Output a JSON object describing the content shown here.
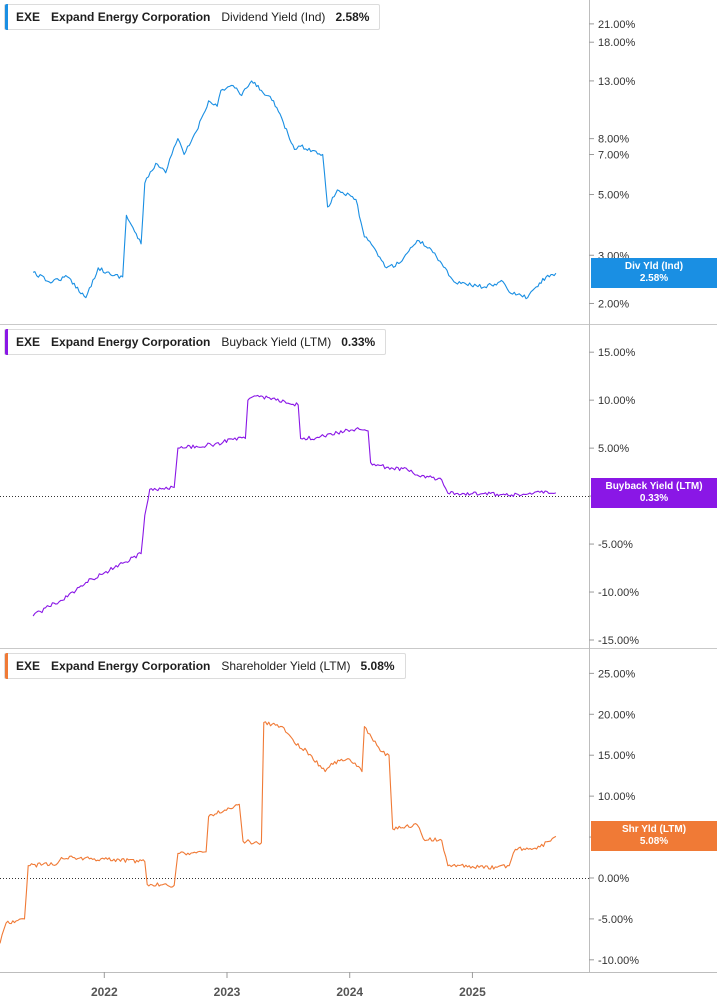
{
  "chart_data": [
    {
      "type": "line",
      "ticker": "EXE",
      "company": "Expand Energy Corporation",
      "metric": "Dividend Yield (Ind)",
      "current_value": "2.58%",
      "tag_label": "Div Yld (Ind)",
      "tag_value": "2.58%",
      "color": "#1a8fe3",
      "scale": "log",
      "ylim": [
        1.8,
        24
      ],
      "yticks": [
        21,
        18,
        13,
        8,
        7,
        5,
        3,
        2
      ],
      "ytick_labels": [
        "21.00%",
        "18.00%",
        "13.00%",
        "8.00%",
        "7.00%",
        "5.00%",
        "3.00%",
        "2.00%"
      ],
      "zero_line": false,
      "x": [
        2021.42,
        2021.55,
        2021.7,
        2021.85,
        2021.95,
        2022.05,
        2022.15,
        2022.18,
        2022.3,
        2022.33,
        2022.42,
        2022.5,
        2022.55,
        2022.6,
        2022.65,
        2022.75,
        2022.85,
        2022.92,
        2022.95,
        2023.05,
        2023.12,
        2023.2,
        2023.28,
        2023.38,
        2023.55,
        2023.6,
        2023.78,
        2023.82,
        2023.9,
        2024.05,
        2024.12,
        2024.15,
        2024.3,
        2024.4,
        2024.55,
        2024.65,
        2024.75,
        2024.85,
        2024.95,
        2025.1,
        2025.25,
        2025.3,
        2025.45,
        2025.52,
        2025.6,
        2025.68
      ],
      "values": [
        2.6,
        2.4,
        2.5,
        2.1,
        2.7,
        2.55,
        2.5,
        4.2,
        3.3,
        5.5,
        6.5,
        6.0,
        7.0,
        8.0,
        7.0,
        8.5,
        11.0,
        10.5,
        12.0,
        12.5,
        11.5,
        13.0,
        12.0,
        11.0,
        7.3,
        7.5,
        7.0,
        4.5,
        5.2,
        4.8,
        3.5,
        3.4,
        2.7,
        2.8,
        3.4,
        3.2,
        2.8,
        2.4,
        2.35,
        2.3,
        2.4,
        2.2,
        2.1,
        2.3,
        2.5,
        2.58
      ]
    },
    {
      "type": "line",
      "ticker": "EXE",
      "company": "Expand Energy Corporation",
      "metric": "Buyback Yield (LTM)",
      "current_value": "0.33%",
      "tag_label": "Buyback Yield (LTM)",
      "tag_value": "0.33%",
      "color": "#8a17e6",
      "scale": "linear",
      "ylim": [
        -15,
        17
      ],
      "yticks": [
        15,
        10,
        5,
        0,
        -5,
        -10,
        -15
      ],
      "ytick_labels": [
        "15.00%",
        "10.00%",
        "5.00%",
        "",
        "-5.00%",
        "-10.00%",
        "-15.00%"
      ],
      "zero_line": true,
      "x": [
        2021.42,
        2021.55,
        2021.7,
        2021.85,
        2022.0,
        2022.15,
        2022.3,
        2022.33,
        2022.37,
        2022.57,
        2022.6,
        2022.75,
        2022.9,
        2023.05,
        2023.15,
        2023.17,
        2023.25,
        2023.4,
        2023.58,
        2023.6,
        2023.75,
        2023.9,
        2024.05,
        2024.15,
        2024.17,
        2024.3,
        2024.5,
        2024.55,
        2024.75,
        2024.8,
        2025.0,
        2025.2,
        2025.4,
        2025.55,
        2025.68
      ],
      "values": [
        -12.5,
        -11.5,
        -10.5,
        -9.0,
        -8.0,
        -7.0,
        -6.0,
        -2.0,
        0.7,
        0.9,
        5.0,
        5.2,
        5.4,
        5.9,
        6.0,
        10.0,
        10.5,
        10.0,
        9.5,
        6.0,
        6.1,
        6.6,
        7.0,
        6.8,
        3.5,
        3.0,
        2.7,
        2.2,
        1.7,
        0.3,
        0.25,
        0.2,
        0.1,
        0.4,
        0.33
      ]
    },
    {
      "type": "line",
      "ticker": "EXE",
      "company": "Expand Energy Corporation",
      "metric": "Shareholder Yield (LTM)",
      "current_value": "5.08%",
      "tag_label": "Shr Yld (LTM)",
      "tag_value": "5.08%",
      "color": "#f07a36",
      "scale": "linear",
      "ylim": [
        -11,
        27
      ],
      "yticks": [
        25,
        20,
        15,
        10,
        5,
        0,
        -5,
        -10
      ],
      "ytick_labels": [
        "25.00%",
        "20.00%",
        "15.00%",
        "10.00%",
        "5.00%",
        "0.00%",
        "-5.00%",
        "-10.00%"
      ],
      "zero_line": true,
      "x": [
        2021.15,
        2021.2,
        2021.35,
        2021.38,
        2021.62,
        2021.65,
        2022.0,
        2022.33,
        2022.35,
        2022.57,
        2022.6,
        2022.83,
        2022.85,
        2023.1,
        2023.13,
        2023.28,
        2023.3,
        2023.45,
        2023.55,
        2023.65,
        2023.8,
        2023.85,
        2024.0,
        2024.1,
        2024.12,
        2024.25,
        2024.32,
        2024.35,
        2024.55,
        2024.6,
        2024.75,
        2024.8,
        2025.0,
        2025.2,
        2025.3,
        2025.35,
        2025.55,
        2025.68
      ],
      "values": [
        -8.0,
        -5.5,
        -5.0,
        1.5,
        1.8,
        2.5,
        2.3,
        2.0,
        -0.8,
        -0.9,
        3.0,
        3.2,
        7.5,
        9.0,
        4.5,
        4.3,
        19.0,
        18.5,
        16.5,
        15.5,
        13.0,
        14.0,
        14.5,
        13.0,
        18.5,
        15.5,
        15.0,
        6.0,
        6.5,
        4.8,
        4.6,
        1.5,
        1.4,
        1.3,
        1.5,
        3.5,
        3.8,
        5.08
      ]
    }
  ],
  "x_axis": {
    "range": [
      2021.15,
      2025.95
    ],
    "ticks": [
      2022,
      2023,
      2024,
      2025
    ],
    "tick_labels": [
      "2022",
      "2023",
      "2024",
      "2025"
    ]
  }
}
